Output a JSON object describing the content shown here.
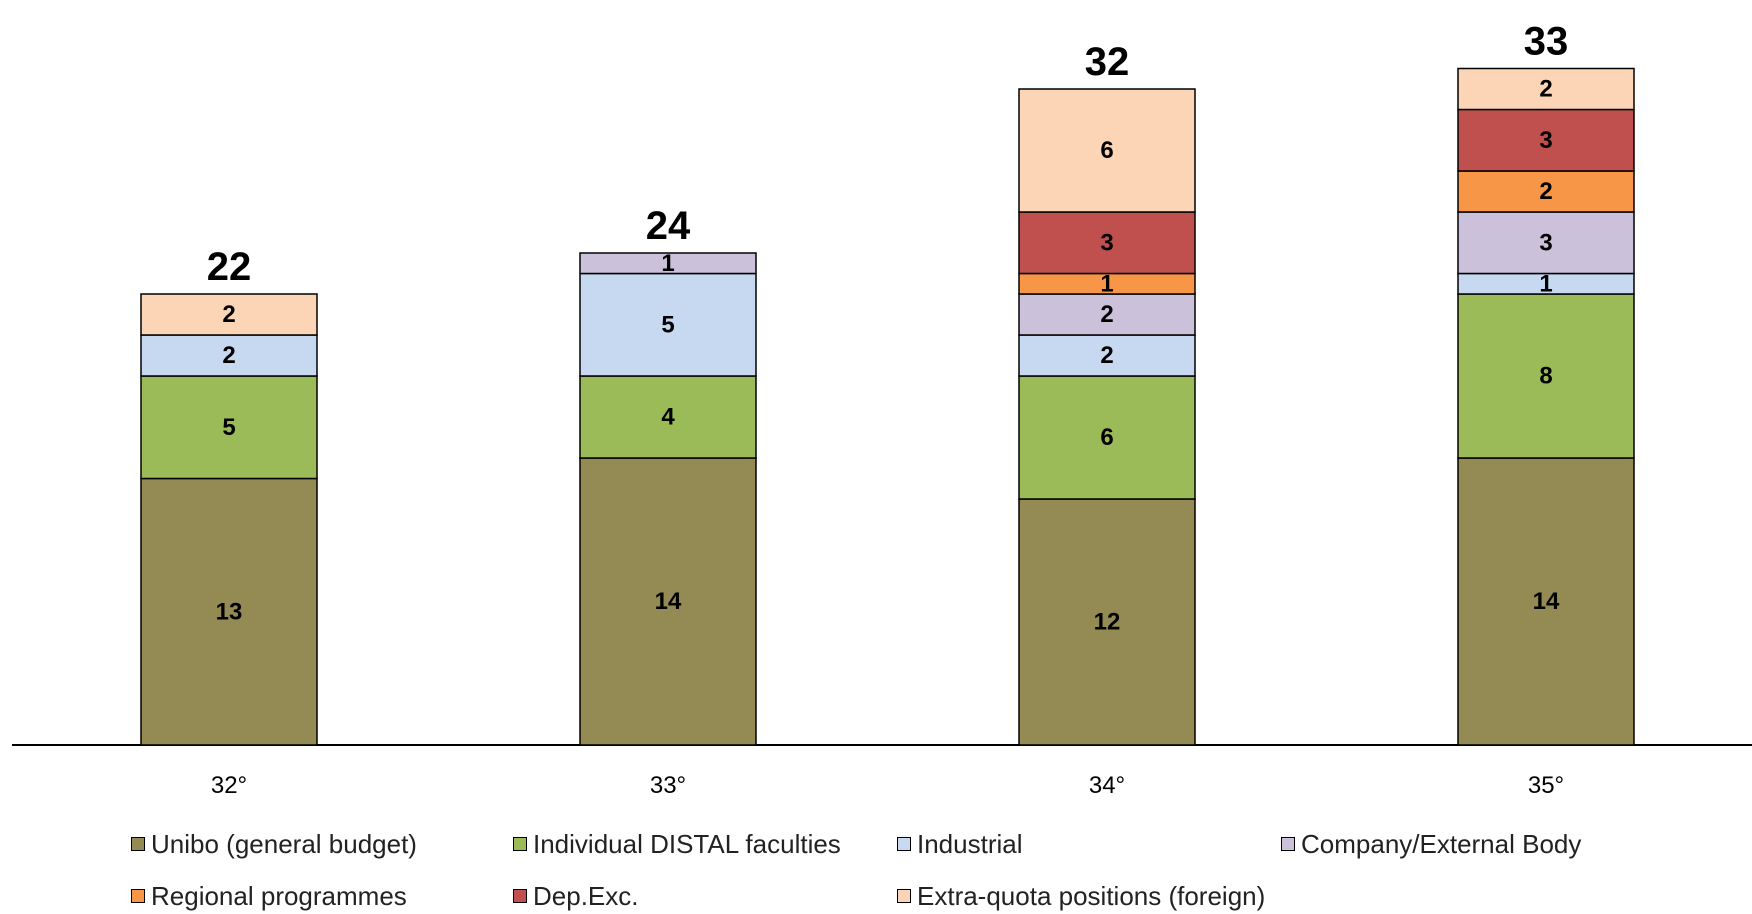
{
  "chart_data": {
    "type": "bar",
    "stacked": true,
    "title": "",
    "xlabel": "",
    "ylabel": "",
    "categories": [
      "32°",
      "33°",
      "34°",
      "35°"
    ],
    "ylim": [
      0,
      33
    ],
    "totals": [
      "22",
      "24",
      "32",
      "33"
    ],
    "series": [
      {
        "name": "Unibo (general budget)",
        "color": "#948A54",
        "values": [
          13,
          14,
          12,
          14
        ]
      },
      {
        "name": "Individual DISTAL faculties",
        "color": "#9BBB59",
        "values": [
          5,
          4,
          6,
          8
        ]
      },
      {
        "name": "Industrial",
        "color": "#C6D9F1",
        "values": [
          2,
          5,
          2,
          1
        ]
      },
      {
        "name": "Company/External Body",
        "color": "#CCC1DA",
        "values": [
          0,
          1,
          2,
          3
        ]
      },
      {
        "name": "Regional programmes",
        "color": "#F79646",
        "values": [
          0,
          0,
          1,
          2
        ]
      },
      {
        "name": "Dep.Exc.",
        "color": "#C0504D",
        "values": [
          0,
          0,
          3,
          3
        ]
      },
      {
        "name": "Extra-quota positions (foreign)",
        "color": "#FBD5B5",
        "values": [
          2,
          0,
          6,
          2
        ]
      }
    ],
    "grid": false,
    "legend_position": "bottom"
  }
}
